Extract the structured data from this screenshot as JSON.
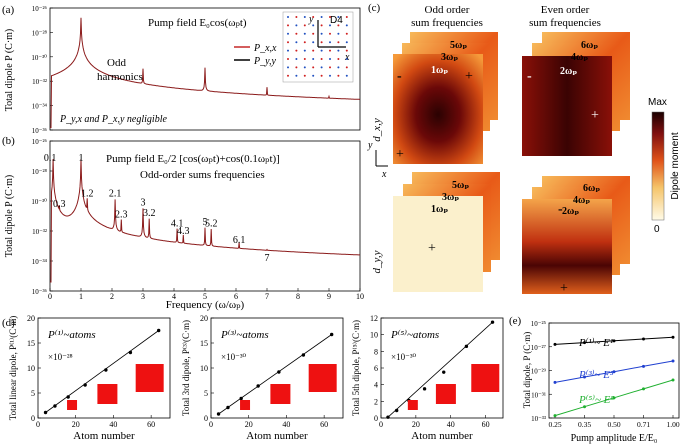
{
  "panels": {
    "a": {
      "label": "(a)",
      "ylabel": "Total dipole P (C·m)",
      "yticks": [
        "10⁻²⁶",
        "10⁻²⁸",
        "10⁻³⁰",
        "10⁻³²",
        "10⁻³⁴",
        "10⁻³⁶"
      ],
      "title": "Pump field E₀cos(ωₚt)",
      "annotation": "Odd harmonics",
      "annotation_line1": "Odd",
      "annotation_line2": "harmonics",
      "note": "P_y,x and P_x,y negligible",
      "legend": [
        "P_x,x",
        "P_y,y"
      ],
      "inset_label": "D4",
      "inset_axes": [
        "x",
        "y"
      ]
    },
    "b": {
      "label": "(b)",
      "ylabel": "Total dipole P (C·m)",
      "title": "Pump field E₀/2 [cos(ωₚt)+cos(0.1ωₚt)]",
      "subtitle": "Odd-order sums frequencies",
      "peak_labels": [
        "0.1",
        "0.3",
        "1",
        "1.2",
        "2.1",
        "2.3",
        "3",
        "3.2",
        "4.1",
        "4.3",
        "5",
        "5.2",
        "6.1",
        "7"
      ],
      "xlabel": "Frequency (ω/ωₚ)",
      "xticks": [
        "0",
        "1",
        "2",
        "3",
        "4",
        "5",
        "6",
        "7",
        "8",
        "9",
        "10"
      ]
    },
    "c": {
      "label": "(c)",
      "col1_title": [
        "Odd order",
        "sum frequencies"
      ],
      "col2_title": [
        "Even order",
        "sum frequencies"
      ],
      "odd_labels": [
        "5ωₚ",
        "3ωₚ",
        "1ωₚ"
      ],
      "even_labels": [
        "6ωₚ",
        "4ωₚ",
        "2ωₚ"
      ],
      "row1_label": "d_x,y",
      "row2_label": "d_y,y",
      "colorbar_max": "Max",
      "colorbar_min": "0",
      "colorbar_title": "Dipole moment",
      "axis_x": "x",
      "axis_y": "y",
      "signs": {
        "minus": "-",
        "plus": "+"
      }
    },
    "d": {
      "label": "(d)",
      "xlabel": "Atom number",
      "plots": [
        {
          "legend": "P⁽¹⁾~atoms",
          "ylabel": "Total linear dipole, P⁽¹⁾(C·m)",
          "scale": "×10⁻²⁸",
          "yticks": [
            "0",
            "5",
            "10",
            "15",
            "20"
          ]
        },
        {
          "legend": "P⁽³⁾~atoms",
          "ylabel": "Total 3rd dipole, P⁽³⁾(C·m)",
          "scale": "×10⁻³⁰",
          "yticks": [
            "0",
            "5",
            "10",
            "15",
            "20"
          ]
        },
        {
          "legend": "P⁽⁵⁾~atoms",
          "ylabel": "Total 5th dipole, P⁽⁵⁾(C·m)",
          "scale": "×10⁻³⁰",
          "yticks": [
            "0",
            "2",
            "4",
            "6",
            "8",
            "10",
            "12"
          ]
        }
      ],
      "xticks": [
        "0",
        "20",
        "40",
        "60"
      ]
    },
    "e": {
      "label": "(e)",
      "ylabel": "Total dipole, P (C·m)",
      "xlabel": "Pump amplitude E/E₀",
      "yticks": [
        "10⁻²⁵",
        "10⁻²⁷",
        "10⁻²⁹",
        "10⁻³¹",
        "10⁻³³"
      ],
      "xticks": [
        "0.25",
        "0.35",
        "0.50",
        "0.71",
        "1.00"
      ],
      "legend": [
        "P⁽¹⁾~ E¹",
        "P⁽³⁾~ E³",
        "P⁽⁵⁾~ E⁵"
      ]
    }
  },
  "chart_data": [
    {
      "type": "line",
      "panel": "a",
      "title": "Pump field E0cos(wpt)",
      "xlabel": "Frequency (w/wp)",
      "ylabel": "Total dipole P (C·m)",
      "xlim": [
        0,
        10
      ],
      "ylim_exp": [
        -36,
        -26
      ],
      "series": [
        {
          "name": "P_x,x",
          "peaks": [
            {
              "x": 1,
              "exp": -26.8
            },
            {
              "x": 3,
              "exp": -31.0
            },
            {
              "x": 5,
              "exp": -30.9
            },
            {
              "x": 7,
              "exp": -32.6
            },
            {
              "x": 9,
              "exp": -33.8
            }
          ],
          "baseline_exp": -35
        }
      ]
    },
    {
      "type": "line",
      "panel": "b",
      "title": "Pump field E0/2[cos(wpt)+cos(0.1wpt)]",
      "xlabel": "Frequency (w/wp)",
      "ylabel": "Total dipole P (C·m)",
      "xlim": [
        0,
        10
      ],
      "ylim_exp": [
        -36,
        -26
      ],
      "peaks": [
        {
          "x": 0.1,
          "exp": -27.2
        },
        {
          "x": 0.3,
          "exp": -30.6
        },
        {
          "x": 1.0,
          "exp": -27.2
        },
        {
          "x": 1.2,
          "exp": -29.9
        },
        {
          "x": 2.1,
          "exp": -29.9
        },
        {
          "x": 2.3,
          "exp": -31.3
        },
        {
          "x": 3.0,
          "exp": -30.5
        },
        {
          "x": 3.2,
          "exp": -31.2
        },
        {
          "x": 4.1,
          "exp": -31.9
        },
        {
          "x": 4.3,
          "exp": -32.4
        },
        {
          "x": 5.0,
          "exp": -31.8
        },
        {
          "x": 5.2,
          "exp": -31.9
        },
        {
          "x": 6.1,
          "exp": -33.0
        },
        {
          "x": 7.0,
          "exp": -34.2
        }
      ]
    },
    {
      "type": "scatter",
      "panel": "d1",
      "xlabel": "Atom number",
      "x": [
        4,
        9,
        16,
        25,
        36,
        49,
        64
      ],
      "y": [
        1.1,
        2.4,
        4.2,
        6.6,
        9.6,
        13.1,
        17.5
      ],
      "ylim": [
        0,
        20
      ],
      "xlim": [
        0,
        70
      ]
    },
    {
      "type": "scatter",
      "panel": "d2",
      "xlabel": "Atom number",
      "x": [
        4,
        9,
        16,
        25,
        36,
        49,
        64
      ],
      "y": [
        0.8,
        2.1,
        3.9,
        6.4,
        9.2,
        12.6,
        16.7
      ],
      "ylim": [
        0,
        20
      ],
      "xlim": [
        0,
        70
      ]
    },
    {
      "type": "scatter",
      "panel": "d3",
      "xlabel": "Atom number",
      "x": [
        4,
        9,
        16,
        25,
        36,
        49,
        64
      ],
      "y": [
        0.1,
        0.9,
        2.1,
        3.5,
        5.5,
        8.6,
        11.5
      ],
      "ylim": [
        0,
        12
      ],
      "xlim": [
        0,
        70
      ]
    },
    {
      "type": "line",
      "panel": "e",
      "xlabel": "Pump amplitude E/E0",
      "ylabel": "Total dipole, P (C·m)",
      "x": [
        0.25,
        0.35,
        0.5,
        0.71,
        1.0
      ],
      "ylim_exp": [
        -33,
        -25
      ],
      "series": [
        {
          "name": "P(1)~E1",
          "exp": [
            -26.8,
            -26.65,
            -26.5,
            -26.35,
            -26.2
          ],
          "color": "#000000"
        },
        {
          "name": "P(3)~E3",
          "exp": [
            -30.0,
            -29.55,
            -29.1,
            -28.65,
            -28.2
          ],
          "color": "#2040d0"
        },
        {
          "name": "P(5)~E5",
          "exp": [
            -32.8,
            -32.05,
            -31.3,
            -30.55,
            -29.8
          ],
          "color": "#20b030"
        }
      ]
    }
  ],
  "colors": {
    "curve": "#8b1a1a",
    "red_square": "#ee1111",
    "blue": "#2040d0",
    "green": "#20b030"
  }
}
